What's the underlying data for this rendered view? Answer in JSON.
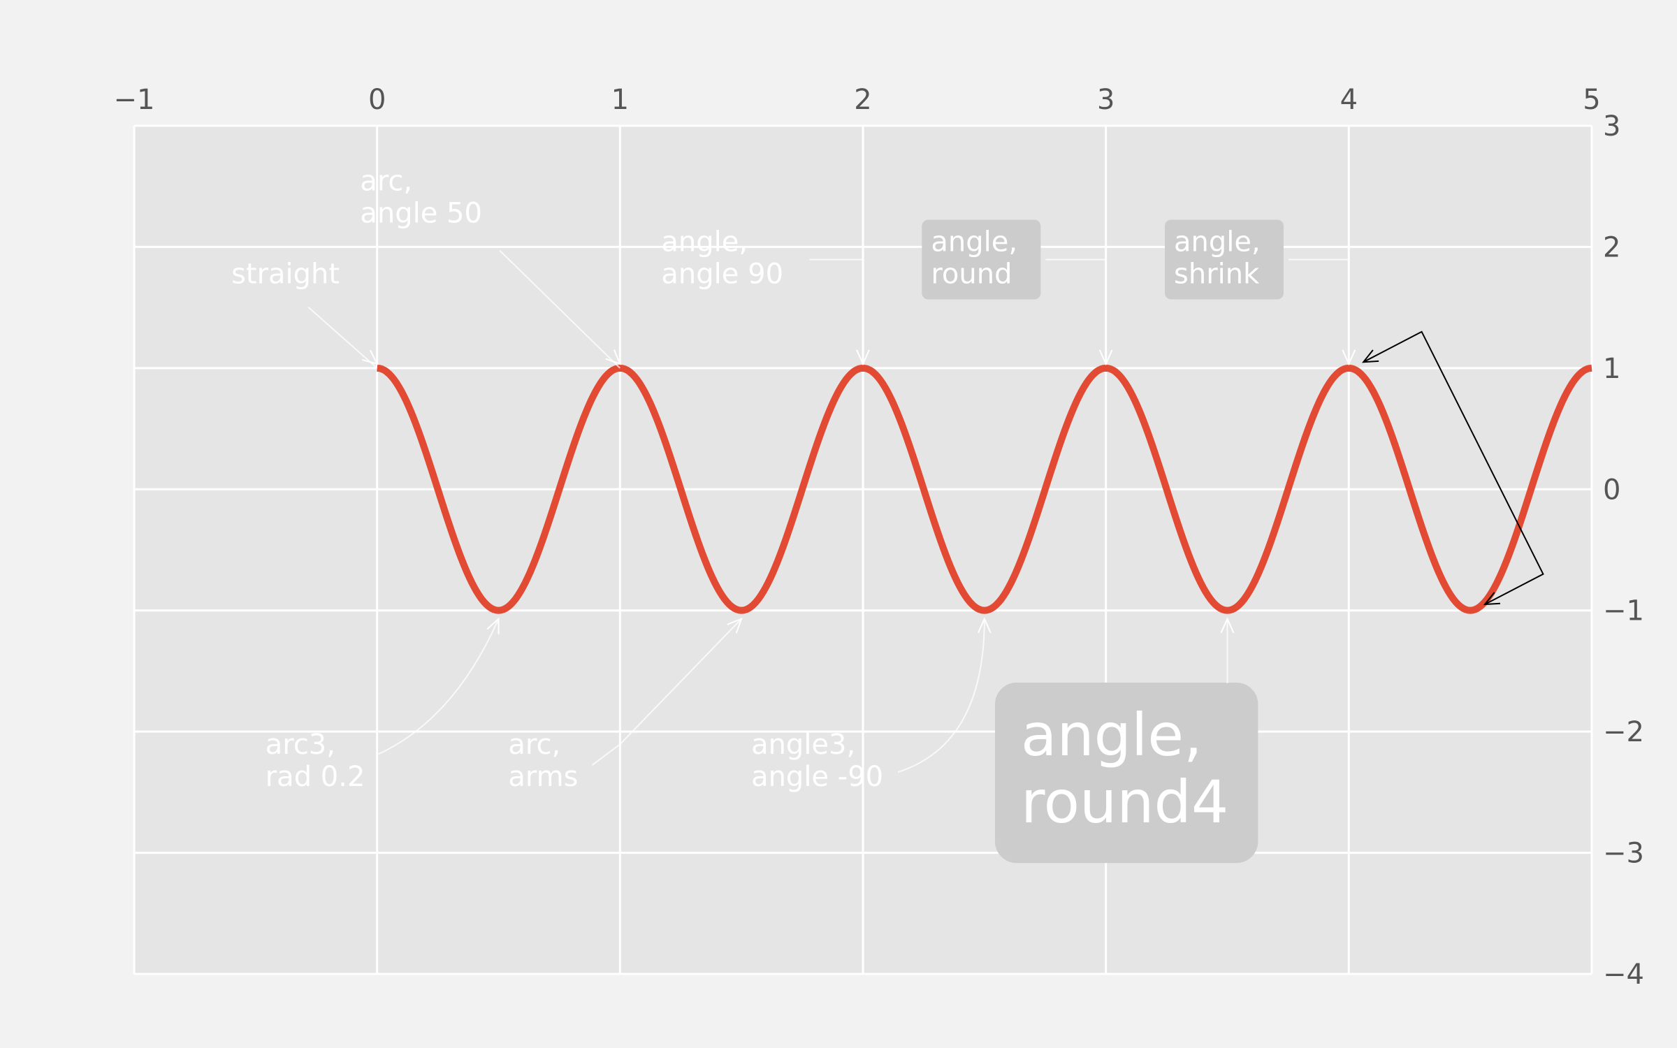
{
  "chart_data": {
    "type": "line",
    "title": "",
    "xlabel": "",
    "ylabel": "",
    "xlim": [
      -1,
      5
    ],
    "ylim": [
      -4,
      3
    ],
    "x_ticks": [
      -1,
      0,
      1,
      2,
      3,
      4,
      5
    ],
    "y_ticks": [
      3,
      2,
      1,
      0,
      -1,
      -2,
      -3,
      -4
    ],
    "x_axis_position": "top",
    "y_axis_position": "right",
    "grid": true,
    "colors": {
      "background": "#f2f2f2",
      "plot_area": "#e5e5e5",
      "grid": "#ffffff",
      "line": "#e24a33",
      "bbox": "#cccccc",
      "tick_text": "#555555",
      "annotation_text": "#ffffff",
      "arrow_light": "#ffffff",
      "arrow_dark": "#000000"
    },
    "series": [
      {
        "function": "cos(2*pi*x)",
        "x_start": 0,
        "x_end": 5,
        "sample_step": 0.01
      }
    ],
    "annotations": [
      {
        "lines": [
          "straight"
        ],
        "point": [
          0,
          1
        ],
        "text_pos": [
          -0.6,
          1.7
        ],
        "style": "straight"
      },
      {
        "lines": [
          "arc,",
          "angle 50"
        ],
        "point": [
          1,
          1
        ],
        "text_pos": [
          -0.07,
          2.2
        ],
        "style": "arc"
      },
      {
        "lines": [
          "angle,",
          "angle 90"
        ],
        "point": [
          2,
          1
        ],
        "text_pos": [
          1.17,
          1.7
        ],
        "style": "angle"
      },
      {
        "lines": [
          "angle,",
          "round"
        ],
        "point": [
          3,
          1
        ],
        "text_pos": [
          2.28,
          1.7
        ],
        "style": "angle",
        "bbox": true
      },
      {
        "lines": [
          "angle,",
          "shrink"
        ],
        "point": [
          4,
          1
        ],
        "text_pos": [
          3.28,
          1.7
        ],
        "style": "angle",
        "bbox": true
      },
      {
        "lines": [],
        "point": [
          4.5,
          -1
        ],
        "text_pos": [
          4.0,
          1.0
        ],
        "style": "bar"
      },
      {
        "lines": [
          "arc3,",
          "rad 0.2"
        ],
        "point": [
          0.5,
          -1
        ],
        "text_pos": [
          -0.46,
          -2.45
        ],
        "style": "arc3"
      },
      {
        "lines": [
          "arc,",
          "arms"
        ],
        "point": [
          1.5,
          -1
        ],
        "text_pos": [
          0.54,
          -2.45
        ],
        "style": "arc"
      },
      {
        "lines": [
          "angle3,",
          "angle -90"
        ],
        "point": [
          2.5,
          -1
        ],
        "text_pos": [
          1.54,
          -2.45
        ],
        "style": "angle3"
      },
      {
        "lines": [
          "angle,",
          "round4"
        ],
        "point": [
          3.5,
          -1
        ],
        "text_pos": [
          2.65,
          -2.75
        ],
        "style": "angle",
        "bbox": true,
        "large": true
      }
    ]
  }
}
